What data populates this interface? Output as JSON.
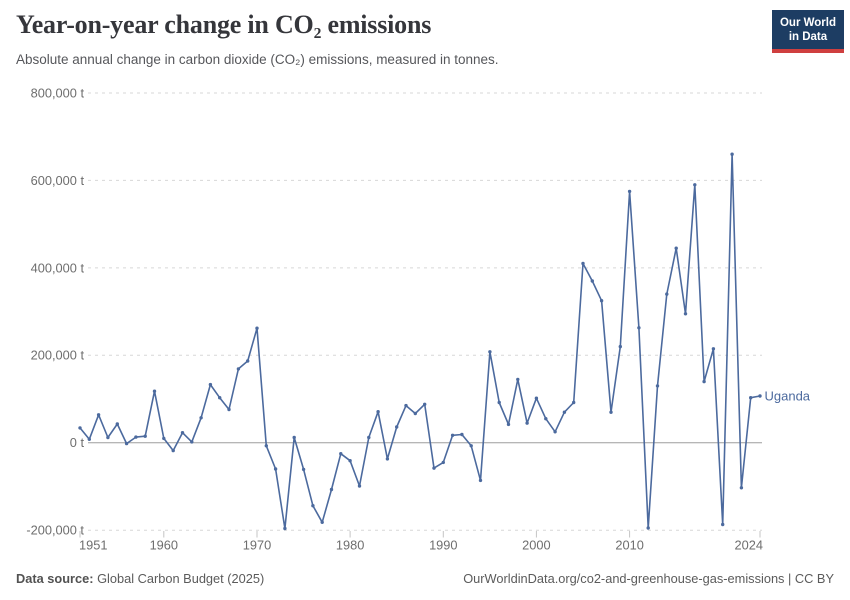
{
  "header": {
    "title": "Year-on-year change in CO₂ emissions",
    "subtitle": "Absolute annual change in carbon dioxide (CO₂) emissions, measured in tonnes.",
    "logo": {
      "line1": "Our World",
      "line2": "in Data",
      "bg_color": "#1d3d63",
      "accent_color": "#cf3f3f"
    }
  },
  "footer": {
    "source_label": "Data source:",
    "source_value": "Global Carbon Budget (2025)",
    "url_text": "OurWorldinData.org/co2-and-greenhouse-gas-emissions | CC BY"
  },
  "colors": {
    "line": "#4c6a9e",
    "grid": "#d7d7d7",
    "zero_line": "#9d9d9d",
    "tick": "#c4c4c4",
    "axis_text": "#6e6e6e",
    "title": "#35363b",
    "subtitle": "#56575b",
    "footer": "#5b5b5b"
  },
  "chart_data": {
    "type": "line",
    "title": "Year-on-year change in CO₂ emissions",
    "unit": "t",
    "xlabel": "",
    "ylabel": "",
    "xlim": [
      1951,
      2024
    ],
    "ylim": [
      -200000,
      800000
    ],
    "grid": "horizontal-dashed",
    "legend_position": "end-of-line-label",
    "entity_label": "Uganda",
    "x_ticks": [
      {
        "value": 1951,
        "label": "1951"
      },
      {
        "value": 1960,
        "label": "1960"
      },
      {
        "value": 1970,
        "label": "1970"
      },
      {
        "value": 1980,
        "label": "1980"
      },
      {
        "value": 1990,
        "label": "1990"
      },
      {
        "value": 2000,
        "label": "2000"
      },
      {
        "value": 2010,
        "label": "2010"
      },
      {
        "value": 2024,
        "label": "2024"
      }
    ],
    "y_ticks": [
      {
        "value": 800000,
        "label": "800,000 t"
      },
      {
        "value": 600000,
        "label": "600,000 t"
      },
      {
        "value": 400000,
        "label": "400,000 t"
      },
      {
        "value": 200000,
        "label": "200,000 t"
      },
      {
        "value": 0,
        "label": "0 t"
      },
      {
        "value": -200000,
        "label": "-200,000 t"
      }
    ],
    "series": [
      {
        "name": "Uganda",
        "color": "#4c6a9e",
        "x": [
          1951,
          1952,
          1953,
          1954,
          1955,
          1956,
          1957,
          1958,
          1959,
          1960,
          1961,
          1962,
          1963,
          1964,
          1965,
          1966,
          1967,
          1968,
          1969,
          1970,
          1971,
          1972,
          1973,
          1974,
          1975,
          1976,
          1977,
          1978,
          1979,
          1980,
          1981,
          1982,
          1983,
          1984,
          1985,
          1986,
          1987,
          1988,
          1989,
          1990,
          1991,
          1992,
          1993,
          1994,
          1995,
          1996,
          1997,
          1998,
          1999,
          2000,
          2001,
          2002,
          2003,
          2004,
          2005,
          2006,
          2007,
          2008,
          2009,
          2010,
          2011,
          2012,
          2013,
          2014,
          2015,
          2016,
          2017,
          2018,
          2019,
          2020,
          2021,
          2022,
          2023,
          2024
        ],
        "values": [
          34000,
          8000,
          64000,
          12000,
          43000,
          -2000,
          13000,
          15000,
          118000,
          10000,
          -18000,
          23000,
          2000,
          57000,
          133000,
          103000,
          76000,
          169000,
          187000,
          262000,
          -7000,
          -60000,
          -196000,
          12000,
          -61000,
          -144000,
          -182000,
          -107000,
          -25000,
          -41000,
          -99000,
          12000,
          71000,
          -37000,
          36000,
          85000,
          67000,
          88000,
          -58000,
          -45000,
          17000,
          19000,
          -7000,
          -86000,
          208000,
          92000,
          42000,
          145000,
          45000,
          102000,
          55000,
          25000,
          70000,
          92000,
          410000,
          370000,
          325000,
          70000,
          220000,
          575000,
          263000,
          -195000,
          130000,
          340000,
          445000,
          295000,
          590000,
          140000,
          215000,
          -187000,
          660000,
          -103000,
          103000,
          107000
        ]
      }
    ]
  }
}
